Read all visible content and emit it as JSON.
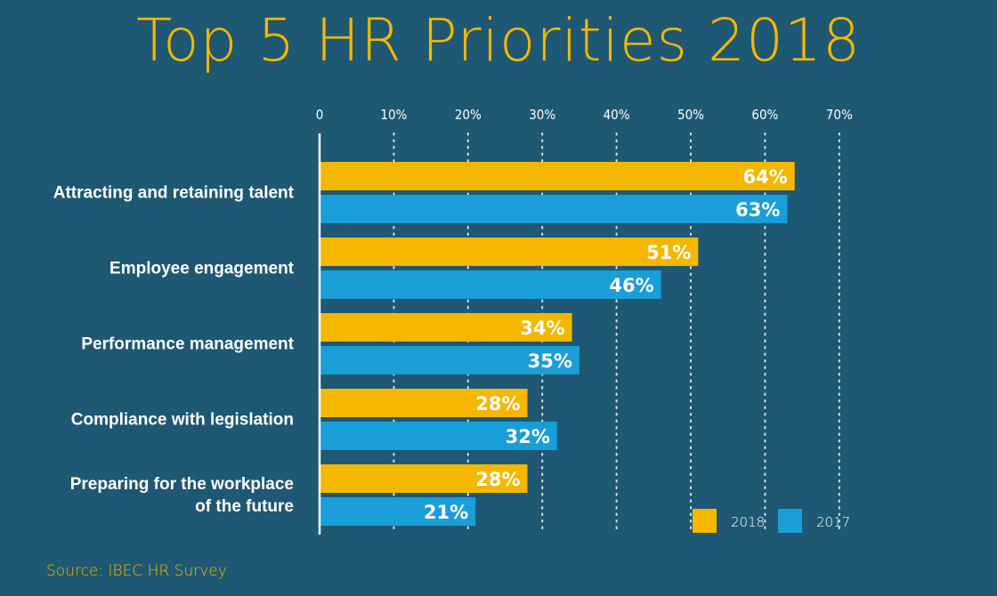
{
  "title": "Top 5 HR Priorities 2018",
  "source": "Source: IBEC HR Survey",
  "colors": {
    "background": "#1e5873",
    "s2018": "#f5b700",
    "s2017": "#1a9ed8",
    "text": "#ffffff",
    "accent": "#f5b700"
  },
  "chart_data": {
    "type": "bar",
    "orientation": "horizontal",
    "title": "Top 5 HR Priorities 2018",
    "categories": [
      [
        "Attracting and retaining talent"
      ],
      [
        "Employee engagement"
      ],
      [
        "Performance management"
      ],
      [
        "Compliance with legislation"
      ],
      [
        "Preparing for the workplace",
        "of the future"
      ]
    ],
    "series": [
      {
        "name": "2018",
        "values": [
          64,
          51,
          34,
          28,
          28
        ],
        "labels": [
          "64%",
          "51%",
          "34%",
          "28%",
          "28%"
        ]
      },
      {
        "name": "2017",
        "values": [
          63,
          46,
          35,
          32,
          21
        ],
        "labels": [
          "63%",
          "46%",
          "35%",
          "32%",
          "21%"
        ]
      }
    ],
    "xlim": [
      0,
      70
    ],
    "xticks": [
      0,
      10,
      20,
      30,
      40,
      50,
      60,
      70
    ],
    "xtick_labels": [
      "0",
      "10%",
      "20%",
      "30%",
      "40%",
      "50%",
      "60%",
      "70%"
    ],
    "grid": "vertical dotted",
    "legend": "bottom-right"
  }
}
